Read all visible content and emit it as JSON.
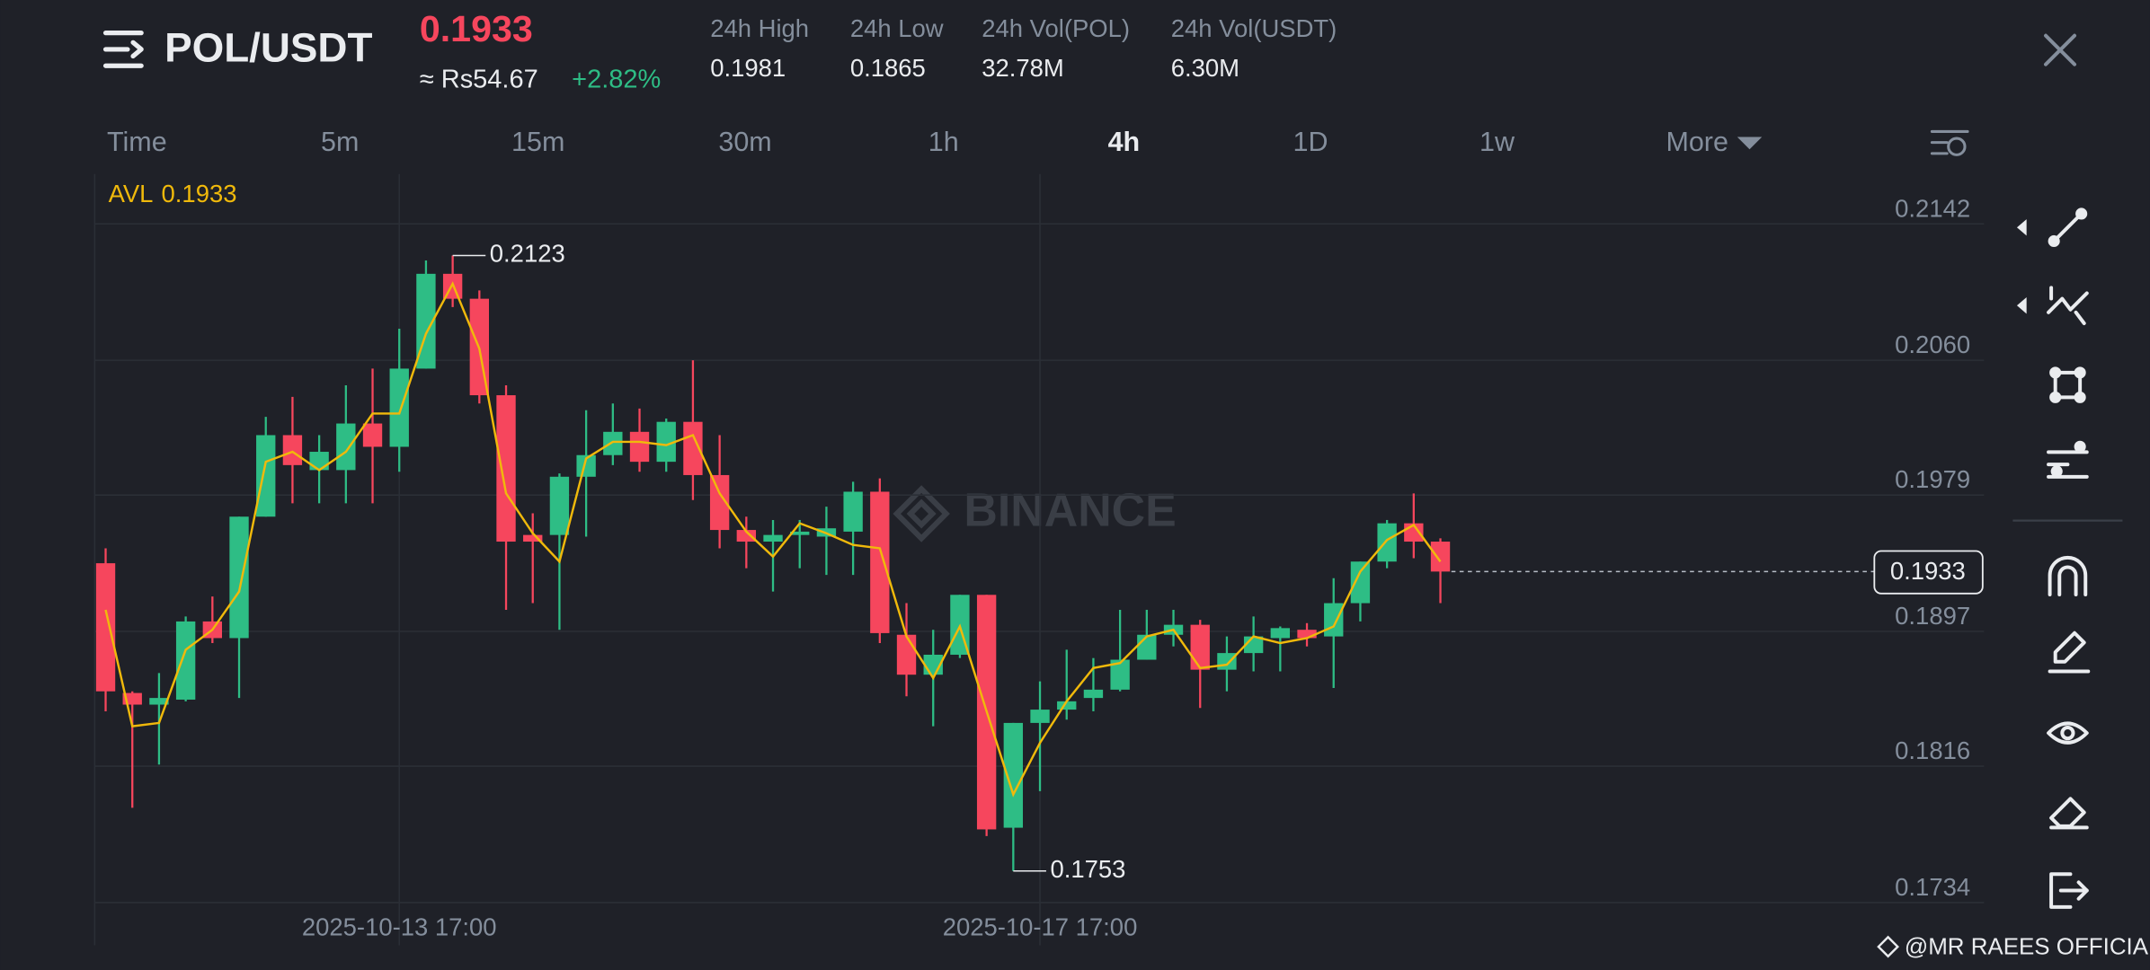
{
  "header": {
    "pair": "POL/USDT",
    "price": "0.1933",
    "approx": "≈ Rs54.67",
    "change": "+2.82%",
    "stats": [
      {
        "label": "24h High",
        "value": "0.1981"
      },
      {
        "label": "24h Low",
        "value": "0.1865"
      },
      {
        "label": "24h Vol(POL)",
        "value": "32.78M"
      },
      {
        "label": "24h Vol(USDT)",
        "value": "6.30M"
      }
    ]
  },
  "timeframes": [
    "Time",
    "5m",
    "15m",
    "30m",
    "1h",
    "4h",
    "1D",
    "1w",
    "More"
  ],
  "watermark": "BINANCE",
  "credit": "@MR RAEES OFFICIAL",
  "chart_data": {
    "type": "candlestick",
    "categories": [
      null,
      null,
      null,
      null,
      null,
      null,
      null,
      null,
      null,
      null,
      null,
      "2025-10-13 17:00",
      null,
      null,
      null,
      null,
      null,
      null,
      null,
      null,
      null,
      null,
      null,
      null,
      null,
      null,
      null,
      null,
      null,
      null,
      null,
      null,
      null,
      null,
      null,
      "2025-10-17 17:00",
      null,
      null,
      null,
      null,
      null,
      null,
      null,
      null,
      null,
      null,
      null,
      null,
      null,
      null,
      null
    ],
    "open": [
      0.1938,
      0.186,
      0.1853,
      0.1856,
      0.1903,
      0.1893,
      0.1966,
      0.2015,
      0.1994,
      0.1994,
      0.2022,
      0.2008,
      0.2055,
      0.2112,
      0.2097,
      0.2039,
      0.1955,
      0.1955,
      0.199,
      0.2003,
      0.2017,
      0.1999,
      0.2023,
      0.1991,
      0.1958,
      0.1951,
      0.1955,
      0.1954,
      0.1957,
      0.1981,
      0.1895,
      0.1871,
      0.1883,
      0.1919,
      0.1779,
      0.1842,
      0.185,
      0.1857,
      0.1862,
      0.188,
      0.1895,
      0.1901,
      0.1874,
      0.1884,
      0.1893,
      0.1898,
      0.1894,
      0.1914,
      0.1939,
      0.1962,
      0.1951
    ],
    "high": [
      0.1947,
      0.1861,
      0.1872,
      0.1906,
      0.1918,
      0.1966,
      0.2026,
      0.2038,
      0.2015,
      0.2045,
      0.2055,
      0.2079,
      0.212,
      0.2123,
      0.2102,
      0.2045,
      0.1968,
      0.1992,
      0.203,
      0.2034,
      0.2031,
      0.2025,
      0.206,
      0.2015,
      0.1966,
      0.1964,
      0.1964,
      0.1972,
      0.1987,
      0.1989,
      0.1914,
      0.1898,
      0.1919,
      0.1919,
      0.1842,
      0.1867,
      0.1886,
      0.1881,
      0.191,
      0.191,
      0.191,
      0.1904,
      0.1894,
      0.1906,
      0.19,
      0.1902,
      0.1929,
      0.1939,
      0.1964,
      0.198,
      0.1953
    ],
    "low": [
      0.1849,
      0.1791,
      0.1817,
      0.1855,
      0.189,
      0.1857,
      0.1966,
      0.1974,
      0.1974,
      0.1974,
      0.1974,
      0.1993,
      0.2055,
      0.2092,
      0.2034,
      0.191,
      0.1914,
      0.1898,
      0.1954,
      0.1997,
      0.1993,
      0.1993,
      0.1976,
      0.1947,
      0.1935,
      0.1921,
      0.1935,
      0.1931,
      0.1931,
      0.189,
      0.1858,
      0.184,
      0.1881,
      0.1774,
      0.1753,
      0.1801,
      0.1844,
      0.1849,
      0.1861,
      0.188,
      0.1888,
      0.1851,
      0.1861,
      0.1873,
      0.1873,
      0.1888,
      0.1863,
      0.1903,
      0.1935,
      0.1941,
      0.1914
    ],
    "close": [
      0.1861,
      0.1853,
      0.1857,
      0.1903,
      0.1893,
      0.1966,
      0.2015,
      0.1997,
      0.2005,
      0.2022,
      0.2008,
      0.2055,
      0.2112,
      0.2097,
      0.2039,
      0.1951,
      0.1951,
      0.199,
      0.2003,
      0.2017,
      0.1999,
      0.2023,
      0.1991,
      0.1958,
      0.1951,
      0.1955,
      0.1957,
      0.1959,
      0.1981,
      0.1896,
      0.1871,
      0.1883,
      0.1919,
      0.1778,
      0.1842,
      0.185,
      0.1855,
      0.1862,
      0.188,
      0.1895,
      0.1901,
      0.1874,
      0.1884,
      0.1894,
      0.1899,
      0.1893,
      0.1914,
      0.1939,
      0.1962,
      0.1951,
      0.1933
    ],
    "up_color": "#2ebd85",
    "down_color": "#f6465d",
    "series": [
      {
        "name": "AVL",
        "color": "#f0b90b",
        "values": [
          0.191,
          0.184,
          0.1842,
          0.1886,
          0.1898,
          0.1921,
          0.1999,
          0.2005,
          0.1994,
          0.2005,
          0.2028,
          0.2028,
          0.2076,
          0.2106,
          0.2067,
          0.198,
          0.1956,
          0.1939,
          0.2001,
          0.2011,
          0.2011,
          0.2009,
          0.2015,
          0.198,
          0.1957,
          0.1942,
          0.1962,
          0.1956,
          0.1949,
          0.1947,
          0.1894,
          0.1869,
          0.19,
          0.1849,
          0.1799,
          0.183,
          0.1855,
          0.1875,
          0.1878,
          0.1894,
          0.1898,
          0.1875,
          0.1877,
          0.1894,
          0.189,
          0.1893,
          0.19,
          0.1933,
          0.1952,
          0.1961,
          0.1939
        ]
      }
    ],
    "legend_value": 0.1933,
    "ylim": [
      0.1733,
      0.2172
    ],
    "yticks": [
      0.1734,
      0.1816,
      0.1897,
      0.1979,
      {
        "value": 0.206,
        "label": "0.2060"
      },
      0.2142
    ],
    "grid": true,
    "annotations": {
      "high": 0.2123,
      "low": 0.1753,
      "last": 0.1933
    }
  }
}
